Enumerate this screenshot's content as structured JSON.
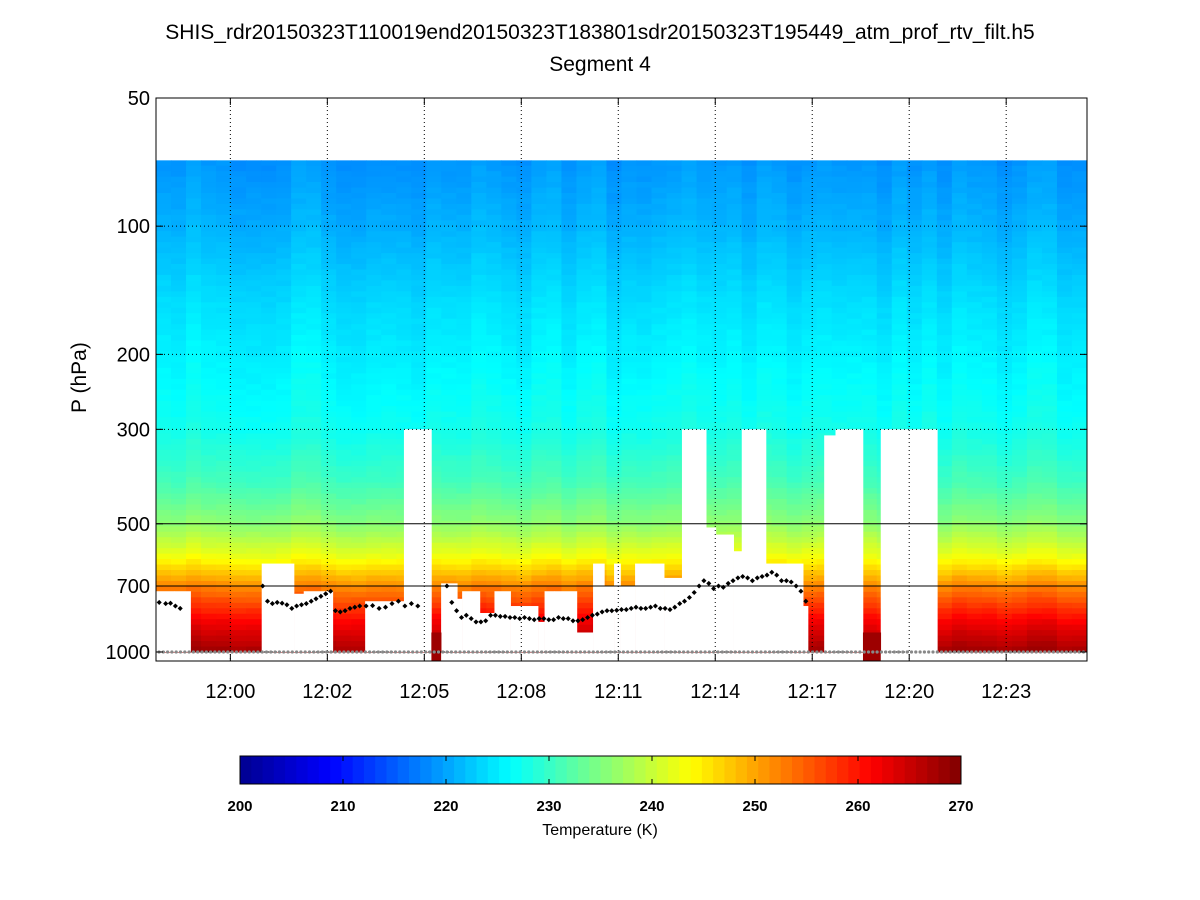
{
  "figure": {
    "title": "SHIS_rdr20150323T110019end20150323T183801sdr20150323T195449_atm_prof_rtv_filt.h5",
    "subtitle": "Segment 4"
  },
  "chart_data": {
    "type": "heatmap",
    "title": "SHIS_rdr20150323T110019end20150323T183801sdr20150323T195449_atm_prof_rtv_filt.h5",
    "subtitle": "Segment 4",
    "xlabel": "",
    "ylabel": "P (hPa)",
    "y_scale": "log",
    "y_reversed": true,
    "ylim": [
      50,
      1050
    ],
    "y_ticks": [
      50,
      100,
      200,
      300,
      500,
      700,
      1000
    ],
    "y_grid_solid": [
      500,
      700
    ],
    "x_unit": "minutes",
    "xlim_minutes": [
      717.7,
      746.5
    ],
    "x_ticks": [
      {
        "label": "12:00",
        "minute": 720.0
      },
      {
        "label": "12:02",
        "minute": 723.0
      },
      {
        "label": "12:05",
        "minute": 726.0
      },
      {
        "label": "12:08",
        "minute": 729.0
      },
      {
        "label": "12:11",
        "minute": 732.0
      },
      {
        "label": "12:14",
        "minute": 735.0
      },
      {
        "label": "12:17",
        "minute": 738.0
      },
      {
        "label": "12:20",
        "minute": 741.0
      },
      {
        "label": "12:23",
        "minute": 744.0
      }
    ],
    "data_top_pressure": 70,
    "colorbar": {
      "label": "Temperature (K)",
      "range": [
        200,
        270
      ],
      "ticks": [
        200,
        210,
        220,
        230,
        240,
        250,
        260,
        270
      ],
      "colormap": "jet"
    },
    "colormap_stops": [
      "#00008f",
      "#0000ff",
      "#00ffff",
      "#ffff00",
      "#ff0000",
      "#800000"
    ],
    "temperature_profile": {
      "pressure": [
        70,
        100,
        150,
        200,
        300,
        400,
        500,
        600,
        700,
        850,
        1000
      ],
      "temperature": [
        219,
        221,
        224,
        225.5,
        227.5,
        231,
        236,
        243,
        252,
        262,
        268
      ]
    },
    "missing_columns": [
      {
        "start": 720.97,
        "end": 721.97,
        "top": 620,
        "bottom": 1000
      },
      {
        "start": 721.97,
        "end": 722.27,
        "top": 730,
        "bottom": 1000
      },
      {
        "start": 722.27,
        "end": 723.17,
        "top": 720,
        "bottom": 1000
      },
      {
        "start": 724.17,
        "end": 725.37,
        "top": 760,
        "bottom": 1000
      },
      {
        "start": 725.37,
        "end": 726.22,
        "top": 300,
        "bottom": 1000
      },
      {
        "start": 726.52,
        "end": 727.02,
        "top": 690,
        "bottom": 1000
      },
      {
        "start": 727.02,
        "end": 727.17,
        "top": 750,
        "bottom": 1000
      },
      {
        "start": 727.17,
        "end": 727.72,
        "top": 720,
        "bottom": 1000
      },
      {
        "start": 727.72,
        "end": 728.17,
        "top": 810,
        "bottom": 1000
      },
      {
        "start": 728.17,
        "end": 728.67,
        "top": 720,
        "bottom": 1000
      },
      {
        "start": 728.67,
        "end": 729.52,
        "top": 780,
        "bottom": 1000
      },
      {
        "start": 729.52,
        "end": 729.72,
        "top": 850,
        "bottom": 1000
      },
      {
        "start": 729.72,
        "end": 730.02,
        "top": 720,
        "bottom": 1000
      },
      {
        "start": 730.02,
        "end": 730.72,
        "top": 720,
        "bottom": 1000
      },
      {
        "start": 730.72,
        "end": 731.22,
        "top": 900,
        "bottom": 1000
      },
      {
        "start": 731.22,
        "end": 731.57,
        "top": 620,
        "bottom": 1000
      },
      {
        "start": 731.57,
        "end": 731.87,
        "top": 700,
        "bottom": 1000
      },
      {
        "start": 731.87,
        "end": 732.07,
        "top": 620,
        "bottom": 1000
      },
      {
        "start": 732.07,
        "end": 732.52,
        "top": 700,
        "bottom": 1000
      },
      {
        "start": 732.52,
        "end": 733.42,
        "top": 620,
        "bottom": 1000
      },
      {
        "start": 733.42,
        "end": 733.97,
        "top": 670,
        "bottom": 1000
      },
      {
        "start": 733.97,
        "end": 734.72,
        "top": 300,
        "bottom": 1000
      },
      {
        "start": 734.72,
        "end": 735.02,
        "top": 510,
        "bottom": 1000
      },
      {
        "start": 735.02,
        "end": 735.57,
        "top": 530,
        "bottom": 1000
      },
      {
        "start": 735.57,
        "end": 735.82,
        "top": 580,
        "bottom": 1000
      },
      {
        "start": 735.82,
        "end": 736.57,
        "top": 300,
        "bottom": 1000
      },
      {
        "start": 736.57,
        "end": 737.72,
        "top": 620,
        "bottom": 1000
      },
      {
        "start": 737.72,
        "end": 737.87,
        "top": 780,
        "bottom": 1000
      },
      {
        "start": 738.37,
        "end": 738.72,
        "top": 310,
        "bottom": 1000
      },
      {
        "start": 738.72,
        "end": 739.57,
        "top": 300,
        "bottom": 1000
      },
      {
        "start": 739.57,
        "end": 740.12,
        "top": 1050,
        "bottom": 1050
      },
      {
        "start": 740.12,
        "end": 740.57,
        "top": 300,
        "bottom": 1050
      },
      {
        "start": 740.57,
        "end": 741.87,
        "top": 300,
        "bottom": 1050
      }
    ],
    "bottom_gaps": [
      {
        "start": 717.7,
        "end": 718.27,
        "bottom": 1000
      },
      {
        "start": 718.27,
        "end": 718.77,
        "bottom": 1000
      },
      {
        "start": 726.22,
        "end": 726.52,
        "bottom": 1050
      },
      {
        "start": 739.57,
        "end": 740.12,
        "bottom": 1050
      }
    ],
    "surface_pressure_series": {
      "name": "",
      "pressure": 1000
    },
    "cloud_top_series": {
      "name": "",
      "minute": [
        717.8,
        718.0,
        718.15,
        718.3,
        718.45,
        721.0,
        721.15,
        721.3,
        721.45,
        721.6,
        721.75,
        721.9,
        722.05,
        722.2,
        722.35,
        722.5,
        722.65,
        722.8,
        722.95,
        723.1,
        723.25,
        723.4,
        723.55,
        723.7,
        723.85,
        724.0,
        724.2,
        724.4,
        724.6,
        724.8,
        725.0,
        725.2,
        725.4,
        725.6,
        725.8,
        726.7,
        726.85,
        727.0,
        727.15,
        727.3,
        727.45,
        727.6,
        727.75,
        727.9,
        728.05,
        728.2,
        728.35,
        728.5,
        728.65,
        728.8,
        728.95,
        729.1,
        729.25,
        729.4,
        729.55,
        729.7,
        729.85,
        730.0,
        730.15,
        730.3,
        730.45,
        730.6,
        730.75,
        730.9,
        731.05,
        731.2,
        731.35,
        731.5,
        731.65,
        731.8,
        731.95,
        732.1,
        732.25,
        732.4,
        732.55,
        732.7,
        732.85,
        733.0,
        733.15,
        733.3,
        733.45,
        733.6,
        733.75,
        733.9,
        734.05,
        734.2,
        734.35,
        734.5,
        734.65,
        734.8,
        734.95,
        735.1,
        735.25,
        735.4,
        735.55,
        735.7,
        735.85,
        736.0,
        736.15,
        736.3,
        736.45,
        736.6,
        736.75,
        736.9,
        737.05,
        737.2,
        737.35,
        737.5,
        737.65,
        737.8
      ],
      "pressure": [
        765,
        770,
        768,
        780,
        790,
        700,
        760,
        770,
        765,
        768,
        775,
        790,
        780,
        775,
        770,
        760,
        750,
        740,
        730,
        720,
        800,
        805,
        800,
        790,
        785,
        780,
        780,
        778,
        790,
        785,
        770,
        760,
        780,
        770,
        780,
        700,
        765,
        800,
        830,
        820,
        835,
        850,
        850,
        845,
        820,
        820,
        825,
        825,
        830,
        830,
        835,
        830,
        835,
        840,
        835,
        835,
        840,
        840,
        830,
        835,
        835,
        845,
        845,
        840,
        830,
        820,
        815,
        805,
        800,
        800,
        798,
        795,
        795,
        790,
        785,
        790,
        790,
        785,
        780,
        790,
        790,
        795,
        785,
        770,
        760,
        745,
        725,
        700,
        680,
        690,
        710,
        700,
        705,
        690,
        680,
        670,
        665,
        670,
        680,
        670,
        665,
        660,
        650,
        660,
        680,
        680,
        685,
        700,
        720,
        760
      ]
    }
  }
}
